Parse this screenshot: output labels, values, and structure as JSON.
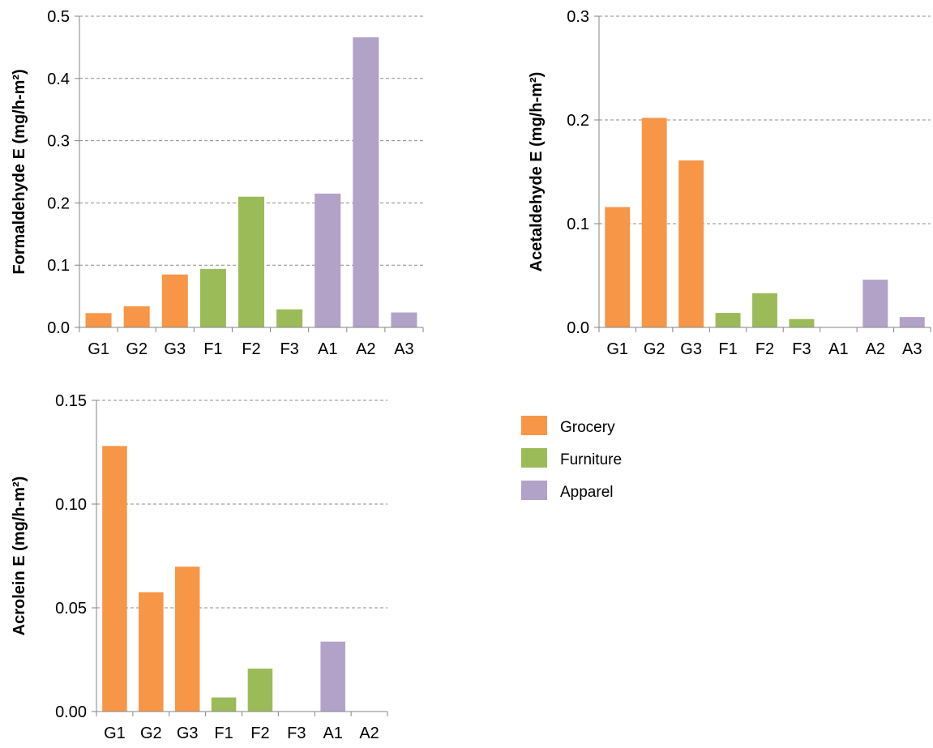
{
  "chart_data": [
    {
      "type": "bar",
      "title": "",
      "xlabel": "",
      "ylabel": "Formaldehyde E (mg/h-m²)",
      "ylim": [
        0,
        0.5
      ],
      "yticks": [
        "0.0",
        "0.1",
        "0.2",
        "0.3",
        "0.4",
        "0.5"
      ],
      "grid": true,
      "categories": [
        "G1",
        "G2",
        "G3",
        "F1",
        "F2",
        "F3",
        "A1",
        "A2",
        "A3"
      ],
      "values": [
        0.023,
        0.034,
        0.085,
        0.094,
        0.21,
        0.029,
        0.215,
        0.466,
        0.024
      ],
      "groups": [
        "Grocery",
        "Grocery",
        "Grocery",
        "Furniture",
        "Furniture",
        "Furniture",
        "Apparel",
        "Apparel",
        "Apparel"
      ]
    },
    {
      "type": "bar",
      "title": "",
      "xlabel": "",
      "ylabel": "Acetaldehyde E (mg/h-m²)",
      "ylim": [
        0,
        0.3
      ],
      "yticks": [
        "0.0",
        "0.1",
        "0.2",
        "0.3"
      ],
      "grid": true,
      "categories": [
        "G1",
        "G2",
        "G3",
        "F1",
        "F2",
        "F3",
        "A1",
        "A2",
        "A3"
      ],
      "values": [
        0.116,
        0.202,
        0.161,
        0.014,
        0.033,
        0.008,
        0,
        0.046,
        0.01
      ],
      "groups": [
        "Grocery",
        "Grocery",
        "Grocery",
        "Furniture",
        "Furniture",
        "Furniture",
        "Apparel",
        "Apparel",
        "Apparel"
      ]
    },
    {
      "type": "bar",
      "title": "",
      "xlabel": "",
      "ylabel": "Acrolein E (mg/h-m²)",
      "ylim": [
        0,
        0.15
      ],
      "yticks": [
        "0.00",
        "0.05",
        "0.10",
        "0.15"
      ],
      "grid": true,
      "categories": [
        "G1",
        "G2",
        "G3",
        "F1",
        "F2",
        "F3",
        "A1",
        "A2"
      ],
      "values": [
        0.128,
        0.0575,
        0.0698,
        0.0068,
        0.0207,
        0,
        0.0337,
        0
      ],
      "groups": [
        "Grocery",
        "Grocery",
        "Grocery",
        "Furniture",
        "Furniture",
        "Furniture",
        "Apparel",
        "Apparel"
      ]
    }
  ],
  "legend": {
    "placement": "right",
    "items": [
      {
        "label": "Grocery",
        "color": "#f79646"
      },
      {
        "label": "Furniture",
        "color": "#9bbb59"
      },
      {
        "label": "Apparel",
        "color": "#b2a2c7"
      }
    ]
  },
  "colors": {
    "Grocery": "#f79646",
    "Furniture": "#9bbb59",
    "Apparel": "#b2a2c7",
    "grid": "#8c8c8c",
    "axis": "#868686",
    "text": "#000000"
  }
}
